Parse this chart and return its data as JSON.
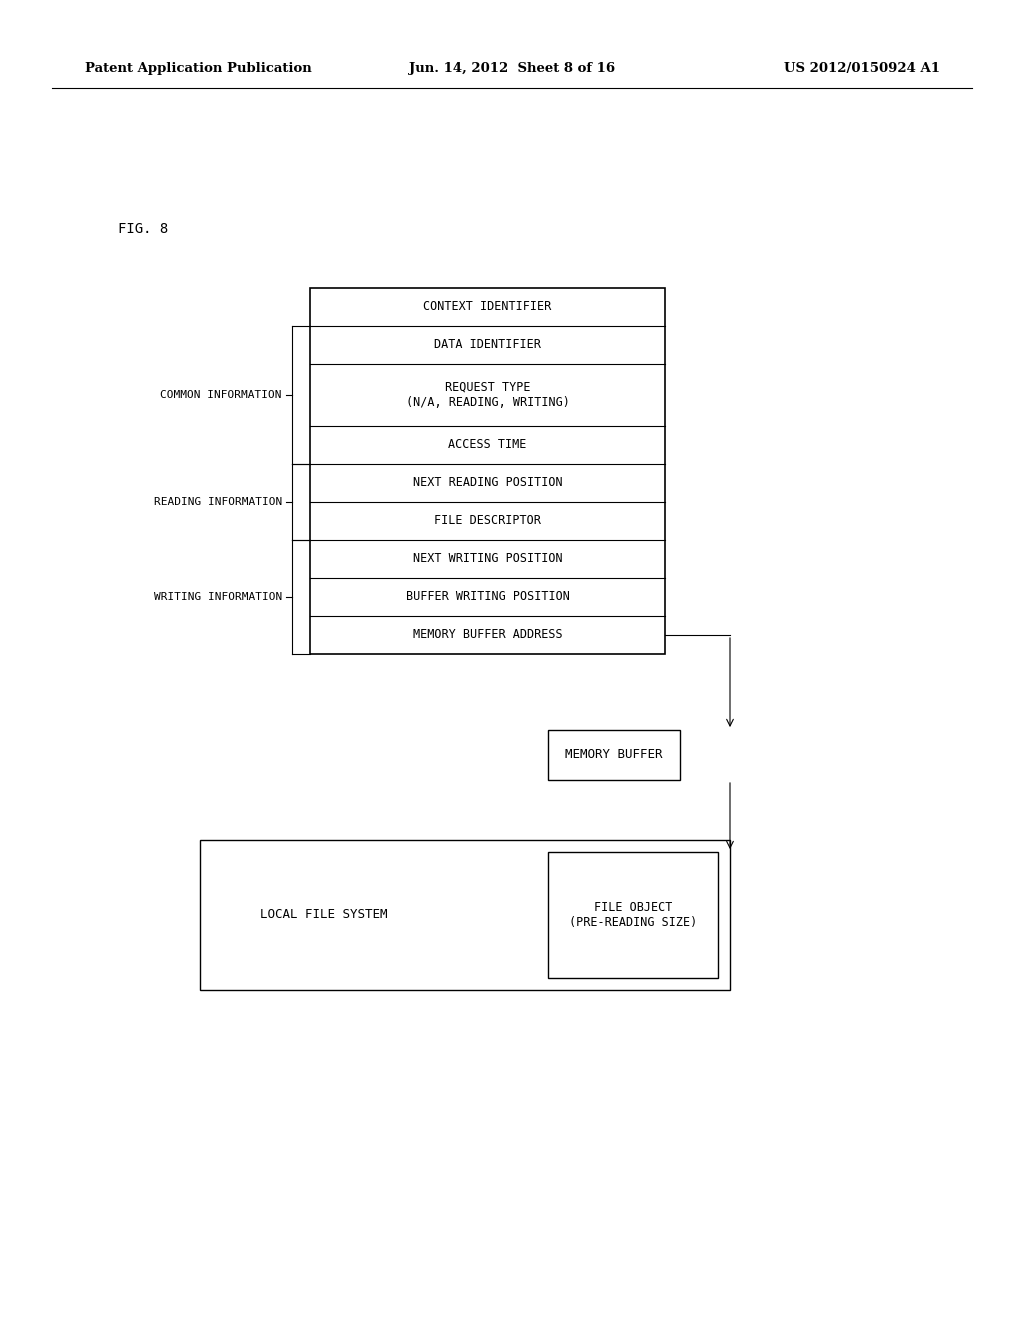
{
  "header_left": "Patent Application Publication",
  "header_center": "Jun. 14, 2012  Sheet 8 of 16",
  "header_right": "US 2012/0150924 A1",
  "fig_label": "FIG. 8",
  "bg_color": "#ffffff",
  "rows": [
    "CONTEXT IDENTIFIER",
    "DATA IDENTIFIER",
    "REQUEST TYPE\n(N/A, READING, WRITING)",
    "ACCESS TIME",
    "NEXT READING POSITION",
    "FILE DESCRIPTOR",
    "NEXT WRITING POSITION",
    "BUFFER WRITING POSITION",
    "MEMORY BUFFER ADDRESS"
  ],
  "memory_buffer_label": "MEMORY BUFFER",
  "file_object_label": "FILE OBJECT\n(PRE-READING SIZE)",
  "local_fs_label": "LOCAL FILE SYSTEM",
  "common_info_label": "COMMON INFORMATION",
  "reading_info_label": "READING INFORMATION",
  "writing_info_label": "WRITING INFORMATION"
}
